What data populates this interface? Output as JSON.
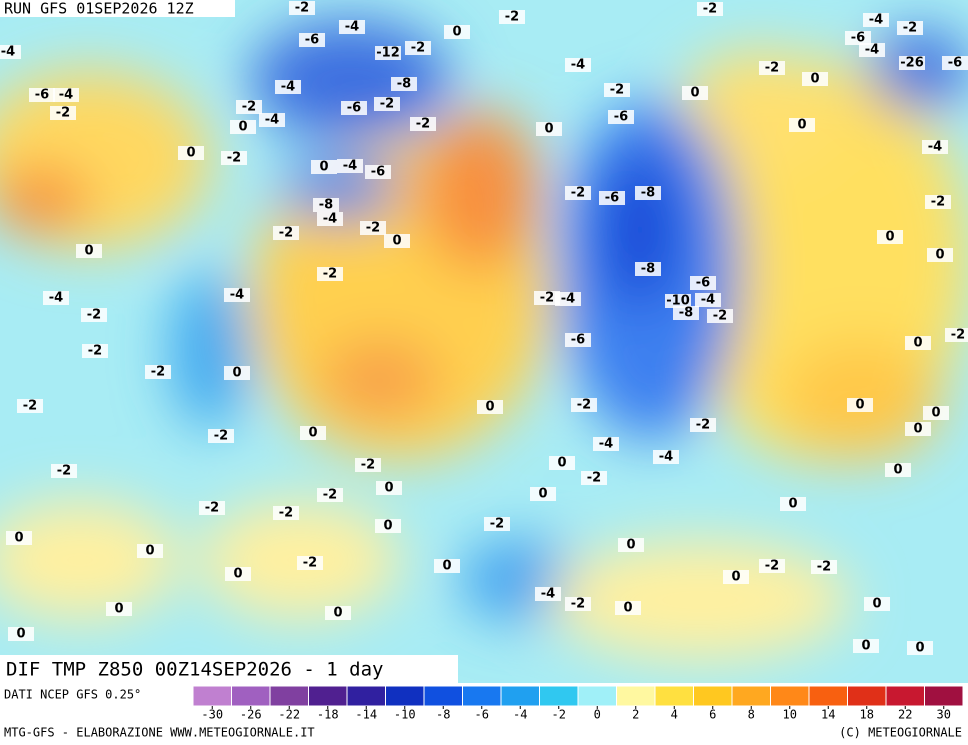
{
  "header": {
    "run": "RUN GFS 01SEP2026 12Z"
  },
  "footer": {
    "field": "DIF TMP Z850 00Z14SEP2026 - 1 day",
    "source": "DATI NCEP GFS 0.25°",
    "credit": "MTG-GFS - ELABORAZIONE WWW.METEOGIORNALE.IT",
    "copyright": "(C) METEOGIORNALE"
  },
  "colorbar": {
    "ticks": [
      -30,
      -26,
      -22,
      -18,
      -14,
      -10,
      -8,
      -6,
      -4,
      -2,
      0,
      2,
      4,
      6,
      8,
      10,
      14,
      18,
      22,
      30
    ],
    "colors": [
      "#c080d0",
      "#a060c0",
      "#8040a0",
      "#502090",
      "#3020a0",
      "#1030c0",
      "#1050e0",
      "#1878f0",
      "#20a0f0",
      "#30c8f0",
      "#a0f0f8",
      "#fff8a0",
      "#ffe040",
      "#ffc820",
      "#ffa820",
      "#ff8818",
      "#f86010",
      "#e03018",
      "#c81830",
      "#a01040"
    ]
  },
  "map": {
    "labels": [
      -2,
      -4,
      -6,
      -12,
      -2,
      0,
      -2,
      -2,
      -4,
      -2,
      -6,
      -4,
      -26,
      -6,
      -4,
      -6,
      -4,
      -2,
      -4,
      -8,
      -2,
      -6,
      -2,
      -4,
      0,
      -2,
      -4,
      -2,
      0,
      -2,
      0,
      0,
      -6,
      0,
      0,
      -2,
      0,
      -4,
      -6,
      -4,
      -2,
      -6,
      -8,
      -2,
      -8,
      -4,
      -2,
      -2,
      0,
      0,
      0,
      0,
      -2,
      -8,
      -6,
      -10,
      -4,
      -8,
      -2,
      -4,
      -4,
      -2,
      -2,
      -4,
      -6,
      -2,
      0,
      -2,
      -2,
      0,
      -2,
      0,
      -2,
      0,
      0,
      -2,
      0,
      -2,
      0,
      -4,
      -4,
      0,
      -2,
      -2,
      -2,
      0,
      0,
      -2,
      0,
      -2,
      -2,
      0,
      0,
      -2,
      0,
      0,
      0,
      -2,
      0,
      -2,
      -2,
      0,
      0,
      -4,
      -2,
      0,
      0,
      0,
      0,
      0,
      0,
      0
    ]
  }
}
